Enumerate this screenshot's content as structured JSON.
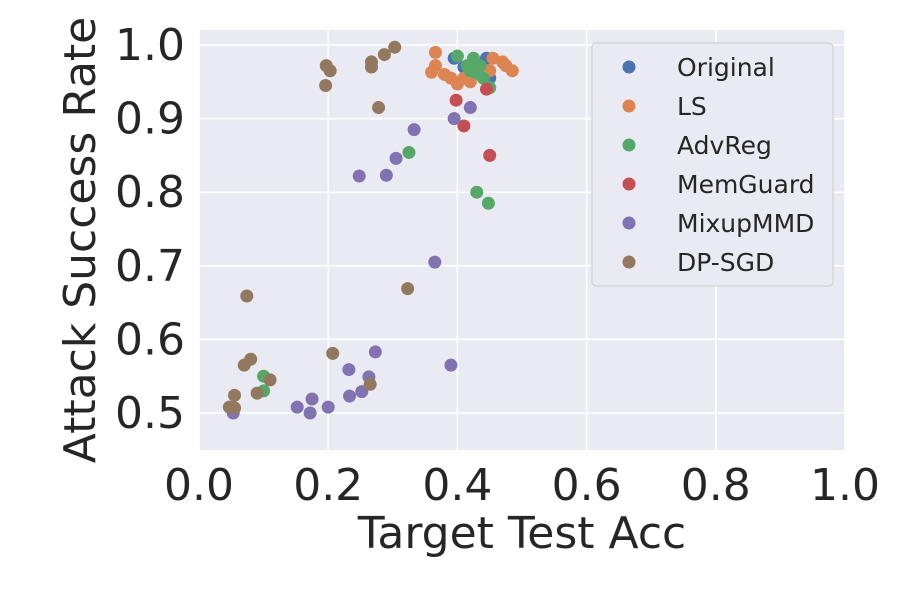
{
  "chart_data": {
    "type": "scatter",
    "title": "",
    "xlabel": "Target Test Acc",
    "ylabel": "Attack Success Rate",
    "xlim": [
      0.0,
      1.0
    ],
    "ylim": [
      0.45,
      1.02
    ],
    "xticks": [
      0.0,
      0.2,
      0.4,
      0.6,
      0.8,
      1.0
    ],
    "xtick_labels": [
      "0.0",
      "0.2",
      "0.4",
      "0.6",
      "0.8",
      "1.0"
    ],
    "yticks": [
      0.5,
      0.6,
      0.7,
      0.8,
      0.9,
      1.0
    ],
    "ytick_labels": [
      "0.5",
      "0.6",
      "0.7",
      "0.8",
      "0.9",
      "1.0"
    ],
    "grid": true,
    "legend_position": "top-right",
    "series": [
      {
        "name": "Original",
        "color": "#4c72b0",
        "points": [
          [
            0.395,
            0.982
          ],
          [
            0.445,
            0.982
          ],
          [
            0.41,
            0.97
          ],
          [
            0.43,
            0.965
          ],
          [
            0.42,
            0.96
          ],
          [
            0.45,
            0.955
          ],
          [
            0.435,
            0.975
          ],
          [
            0.44,
            0.96
          ]
        ]
      },
      {
        "name": "LS",
        "color": "#dd8452",
        "points": [
          [
            0.366,
            0.99
          ],
          [
            0.366,
            0.972
          ],
          [
            0.36,
            0.963
          ],
          [
            0.38,
            0.96
          ],
          [
            0.39,
            0.955
          ],
          [
            0.4,
            0.947
          ],
          [
            0.41,
            0.955
          ],
          [
            0.42,
            0.95
          ],
          [
            0.455,
            0.982
          ],
          [
            0.47,
            0.977
          ],
          [
            0.475,
            0.972
          ],
          [
            0.485,
            0.965
          ],
          [
            0.45,
            0.965
          ],
          [
            0.44,
            0.962
          ]
        ]
      },
      {
        "name": "AdvReg",
        "color": "#55a868",
        "points": [
          [
            0.4,
            0.985
          ],
          [
            0.425,
            0.982
          ],
          [
            0.415,
            0.972
          ],
          [
            0.42,
            0.965
          ],
          [
            0.43,
            0.962
          ],
          [
            0.44,
            0.955
          ],
          [
            0.435,
            0.972
          ],
          [
            0.45,
            0.942
          ],
          [
            0.325,
            0.854
          ],
          [
            0.43,
            0.8
          ],
          [
            0.448,
            0.785
          ],
          [
            0.1,
            0.55
          ],
          [
            0.1,
            0.53
          ]
        ]
      },
      {
        "name": "MemGuard",
        "color": "#c44e52",
        "points": [
          [
            0.398,
            0.925
          ],
          [
            0.41,
            0.89
          ],
          [
            0.445,
            0.94
          ],
          [
            0.45,
            0.85
          ]
        ]
      },
      {
        "name": "MixupMMD",
        "color": "#8172b2",
        "points": [
          [
            0.42,
            0.915
          ],
          [
            0.395,
            0.9
          ],
          [
            0.333,
            0.885
          ],
          [
            0.305,
            0.846
          ],
          [
            0.248,
            0.822
          ],
          [
            0.29,
            0.823
          ],
          [
            0.365,
            0.705
          ],
          [
            0.39,
            0.565
          ],
          [
            0.273,
            0.583
          ],
          [
            0.232,
            0.559
          ],
          [
            0.263,
            0.549
          ],
          [
            0.252,
            0.529
          ],
          [
            0.233,
            0.523
          ],
          [
            0.175,
            0.519
          ],
          [
            0.152,
            0.508
          ],
          [
            0.2,
            0.508
          ],
          [
            0.172,
            0.5
          ],
          [
            0.053,
            0.5
          ]
        ]
      },
      {
        "name": "DP-SGD",
        "color": "#937860",
        "points": [
          [
            0.303,
            0.997
          ],
          [
            0.287,
            0.987
          ],
          [
            0.267,
            0.977
          ],
          [
            0.267,
            0.97
          ],
          [
            0.197,
            0.972
          ],
          [
            0.203,
            0.965
          ],
          [
            0.196,
            0.945
          ],
          [
            0.278,
            0.915
          ],
          [
            0.323,
            0.669
          ],
          [
            0.074,
            0.659
          ],
          [
            0.207,
            0.581
          ],
          [
            0.08,
            0.573
          ],
          [
            0.07,
            0.565
          ],
          [
            0.11,
            0.545
          ],
          [
            0.265,
            0.539
          ],
          [
            0.09,
            0.527
          ],
          [
            0.055,
            0.524
          ],
          [
            0.047,
            0.508
          ],
          [
            0.055,
            0.507
          ]
        ]
      }
    ]
  }
}
